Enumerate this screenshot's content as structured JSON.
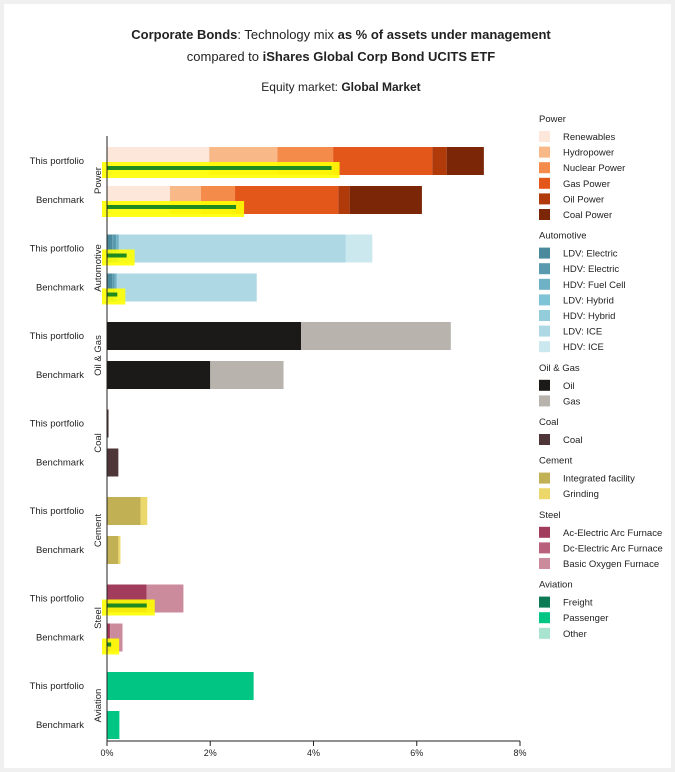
{
  "chart_data": {
    "type": "bar",
    "orientation": "horizontal",
    "stacked": true,
    "title_parts": [
      {
        "text": "Corporate Bonds",
        "bold": true
      },
      {
        "text": ": Technology mix ",
        "bold": false
      },
      {
        "text": "as % of assets under management",
        "bold": true
      }
    ],
    "subtitle_parts": [
      {
        "text": "compared to ",
        "bold": false
      },
      {
        "text": "iShares Global Corp Bond UCITS ETF",
        "bold": true
      }
    ],
    "equity_parts": [
      {
        "text": "Equity market: ",
        "bold": false
      },
      {
        "text": "Global Market",
        "bold": true
      }
    ],
    "xlim": [
      0,
      8
    ],
    "xticks": [
      {
        "value": 0,
        "label": "0%"
      },
      {
        "value": 2,
        "label": "2%"
      },
      {
        "value": 4,
        "label": "4%"
      },
      {
        "value": 6,
        "label": "6%"
      },
      {
        "value": 8,
        "label": "8%"
      }
    ],
    "sectors": [
      {
        "name": "Power",
        "legend": [
          {
            "name": "Renewables",
            "color": "#fde6da"
          },
          {
            "name": "Hydropower",
            "color": "#f8b888"
          },
          {
            "name": "Nuclear Power",
            "color": "#f58b4b"
          },
          {
            "name": "Gas Power",
            "color": "#e4571a"
          },
          {
            "name": "Oil Power",
            "color": "#b13a0a"
          },
          {
            "name": "Coal Power",
            "color": "#7b2606"
          }
        ],
        "rows": [
          {
            "label": "This portfolio",
            "segments": [
              1.98,
              1.32,
              1.08,
              1.92,
              0.28,
              0.72
            ],
            "target": 4.35
          },
          {
            "label": "Benchmark",
            "segments": [
              1.22,
              0.6,
              0.66,
              2.0,
              0.22,
              1.4
            ],
            "target": 2.5
          }
        ]
      },
      {
        "name": "Automotive",
        "legend": [
          {
            "name": "LDV: Electric",
            "color": "#4b8a9c"
          },
          {
            "name": "HDV: Electric",
            "color": "#5a9aae"
          },
          {
            "name": "HDV: Fuel Cell",
            "color": "#6fb1c5"
          },
          {
            "name": "LDV: Hybrid",
            "color": "#7ec3d6"
          },
          {
            "name": "HDV: Hybrid",
            "color": "#93cddc"
          },
          {
            "name": "LDV: ICE",
            "color": "#add8e4"
          },
          {
            "name": "HDV: ICE",
            "color": "#cce8ef"
          }
        ],
        "rows": [
          {
            "label": "This portfolio",
            "segments": [
              0.1,
              0.08,
              0.05,
              0.0,
              0.0,
              4.39,
              0.52
            ],
            "target": 0.38
          },
          {
            "label": "Benchmark",
            "segments": [
              0.1,
              0.05,
              0.04,
              0.0,
              0.0,
              2.71,
              0.0
            ],
            "target": 0.2
          }
        ]
      },
      {
        "name": "Oil & Gas",
        "legend": [
          {
            "name": "Oil",
            "color": "#1c1a18"
          },
          {
            "name": "Gas",
            "color": "#b8b4ad"
          }
        ],
        "rows": [
          {
            "label": "This portfolio",
            "segments": [
              3.76,
              2.9
            ],
            "target": null
          },
          {
            "label": "Benchmark",
            "segments": [
              2.0,
              1.42
            ],
            "target": null
          }
        ]
      },
      {
        "name": "Coal",
        "legend": [
          {
            "name": "Coal",
            "color": "#4e3537"
          }
        ],
        "rows": [
          {
            "label": "This portfolio",
            "segments": [
              0.03
            ],
            "target": null
          },
          {
            "label": "Benchmark",
            "segments": [
              0.22
            ],
            "target": null
          }
        ]
      },
      {
        "name": "Cement",
        "legend": [
          {
            "name": "Integrated facility",
            "color": "#c2b055"
          },
          {
            "name": "Grinding",
            "color": "#ecd86a"
          }
        ],
        "rows": [
          {
            "label": "This portfolio",
            "segments": [
              0.65,
              0.13
            ],
            "target": null
          },
          {
            "label": "Benchmark",
            "segments": [
              0.22,
              0.04
            ],
            "target": null
          }
        ]
      },
      {
        "name": "Steel",
        "legend": [
          {
            "name": "Ac-Electric Arc Furnace",
            "color": "#a23c5c"
          },
          {
            "name": "Dc-Electric Arc Furnace",
            "color": "#b9607c"
          },
          {
            "name": "Basic Oxygen Furnace",
            "color": "#cc8b9c"
          }
        ],
        "rows": [
          {
            "label": "This portfolio",
            "segments": [
              0.77,
              0.0,
              0.71
            ],
            "target": 0.77
          },
          {
            "label": "Benchmark",
            "segments": [
              0.06,
              0.0,
              0.24
            ],
            "target": 0.08
          }
        ]
      },
      {
        "name": "Aviation",
        "legend": [
          {
            "name": "Freight",
            "color": "#0b7a55"
          },
          {
            "name": "Passenger",
            "color": "#00c583"
          },
          {
            "name": "Other",
            "color": "#a8e4d0"
          }
        ],
        "rows": [
          {
            "label": "This portfolio",
            "segments": [
              0.0,
              2.84,
              0.0
            ],
            "target": null
          },
          {
            "label": "Benchmark",
            "segments": [
              0.0,
              0.24,
              0.0
            ],
            "target": null
          }
        ]
      }
    ],
    "target_band_color": "#ffff00",
    "target_line_color": "#1f8a1f",
    "grid": false,
    "legend_position": "right"
  }
}
